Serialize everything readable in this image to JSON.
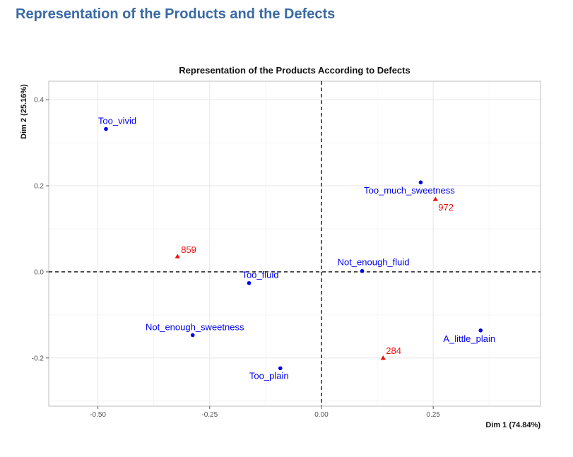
{
  "page": {
    "heading": "Representation of the Products and the Defects"
  },
  "chart_data": {
    "type": "scatter",
    "title": "Representation of the Products According to Defects",
    "xlabel": "Dim 1 (74.84%)",
    "ylabel": "Dim 2 (25.16%)",
    "xlim": [
      -0.61,
      0.49
    ],
    "ylim": [
      -0.312,
      0.443
    ],
    "x_ticks": [
      -0.5,
      -0.25,
      0.0,
      0.25
    ],
    "x_tick_labels": [
      "-0.50",
      "-0.25",
      "0.00",
      "0.25"
    ],
    "y_ticks": [
      -0.2,
      0.0,
      0.2,
      0.4
    ],
    "y_tick_labels": [
      "-0.2",
      "0.0",
      "0.2",
      "0.4"
    ],
    "grid": true,
    "reference_lines": {
      "x": 0,
      "y": 0,
      "style": "dashed"
    },
    "series": [
      {
        "name": "Defects",
        "marker": "circle",
        "color": "#0000ee",
        "points": [
          {
            "label": "Too_vivid",
            "x": -0.482,
            "y": 0.332
          },
          {
            "label": "Too_much_sweetness",
            "x": 0.222,
            "y": 0.208
          },
          {
            "label": "Not_enough_fluid",
            "x": 0.091,
            "y": 0.002
          },
          {
            "label": "Too_fluid",
            "x": -0.162,
            "y": -0.026
          },
          {
            "label": "Not_enough_sweetness",
            "x": -0.288,
            "y": -0.147
          },
          {
            "label": "Too_plain",
            "x": -0.092,
            "y": -0.224
          },
          {
            "label": "A_little_plain",
            "x": 0.356,
            "y": -0.136
          }
        ]
      },
      {
        "name": "Products",
        "marker": "triangle",
        "color": "#ee1111",
        "points": [
          {
            "label": "972",
            "x": 0.255,
            "y": 0.169
          },
          {
            "label": "859",
            "x": -0.322,
            "y": 0.036
          },
          {
            "label": "284",
            "x": 0.138,
            "y": -0.2
          }
        ]
      }
    ]
  }
}
